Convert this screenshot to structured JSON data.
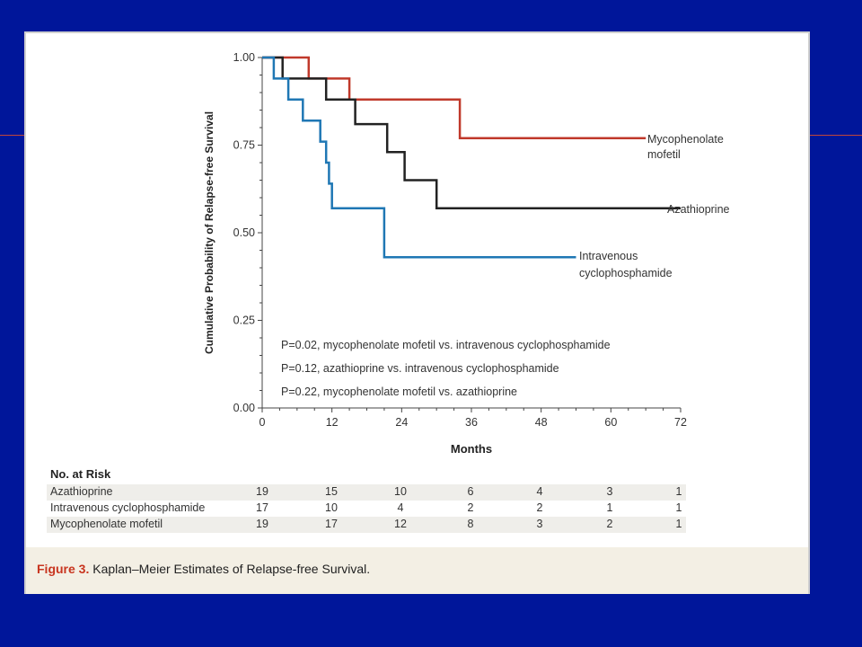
{
  "caption": {
    "figure": "Figure 3.",
    "title": "Kaplan–Meier Estimates of Relapse-free Survival."
  },
  "risk_table": {
    "title": "No. at Risk",
    "rows": [
      {
        "name": "Azathioprine",
        "values": [
          "19",
          "15",
          "10",
          "6",
          "4",
          "3",
          "1"
        ]
      },
      {
        "name": "Intravenous cyclophosphamide",
        "values": [
          "17",
          "10",
          "4",
          "2",
          "2",
          "1",
          "1"
        ]
      },
      {
        "name": "Mycophenolate mofetil",
        "values": [
          "19",
          "17",
          "12",
          "8",
          "3",
          "2",
          "1"
        ]
      }
    ]
  },
  "chart_data": {
    "type": "line",
    "step": true,
    "xlabel": "Months",
    "ylabel": "Cumulative Probability of Relapse-free Survival",
    "xlim": [
      0,
      72
    ],
    "ylim": [
      0,
      1
    ],
    "x_ticks": [
      "0",
      "12",
      "24",
      "36",
      "48",
      "60",
      "72"
    ],
    "y_ticks": [
      "0.00",
      "0.25",
      "0.50",
      "0.75",
      "1.00"
    ],
    "grid": false,
    "series": [
      {
        "name": "Mycophenolate mofetil",
        "color": "#c0392b",
        "points": [
          [
            0,
            1.0
          ],
          [
            8,
            1.0
          ],
          [
            8,
            0.94
          ],
          [
            15,
            0.94
          ],
          [
            15,
            0.88
          ],
          [
            34,
            0.88
          ],
          [
            34,
            0.77
          ],
          [
            66,
            0.77
          ]
        ]
      },
      {
        "name": "Azathioprine",
        "color": "#222222",
        "points": [
          [
            0,
            1.0
          ],
          [
            3.5,
            1.0
          ],
          [
            3.5,
            0.94
          ],
          [
            11,
            0.94
          ],
          [
            11,
            0.88
          ],
          [
            16,
            0.88
          ],
          [
            16,
            0.81
          ],
          [
            21.5,
            0.81
          ],
          [
            21.5,
            0.73
          ],
          [
            24.5,
            0.73
          ],
          [
            24.5,
            0.65
          ],
          [
            30,
            0.65
          ],
          [
            30,
            0.57
          ],
          [
            72,
            0.57
          ]
        ]
      },
      {
        "name": "Intravenous cyclophosphamide",
        "color": "#1f77b4",
        "points": [
          [
            0,
            1.0
          ],
          [
            2,
            1.0
          ],
          [
            2,
            0.94
          ],
          [
            4.5,
            0.94
          ],
          [
            4.5,
            0.88
          ],
          [
            7,
            0.88
          ],
          [
            7,
            0.82
          ],
          [
            10,
            0.82
          ],
          [
            10,
            0.76
          ],
          [
            11,
            0.76
          ],
          [
            11,
            0.7
          ],
          [
            11.5,
            0.7
          ],
          [
            11.5,
            0.64
          ],
          [
            12,
            0.64
          ],
          [
            12,
            0.57
          ],
          [
            21,
            0.57
          ],
          [
            21,
            0.43
          ],
          [
            54,
            0.43
          ]
        ]
      }
    ],
    "series_labels": [
      {
        "lines": [
          "Mycophenolate",
          "mofetil"
        ]
      },
      {
        "lines": [
          "Azathioprine"
        ]
      },
      {
        "lines": [
          "Intravenous",
          "cyclophosphamide"
        ]
      }
    ],
    "annotations": [
      "P=0.02, mycophenolate mofetil vs. intravenous cyclophosphamide",
      "P=0.12, azathioprine vs. intravenous cyclophosphamide",
      "P=0.22, mycophenolate mofetil vs. azathioprine"
    ]
  }
}
